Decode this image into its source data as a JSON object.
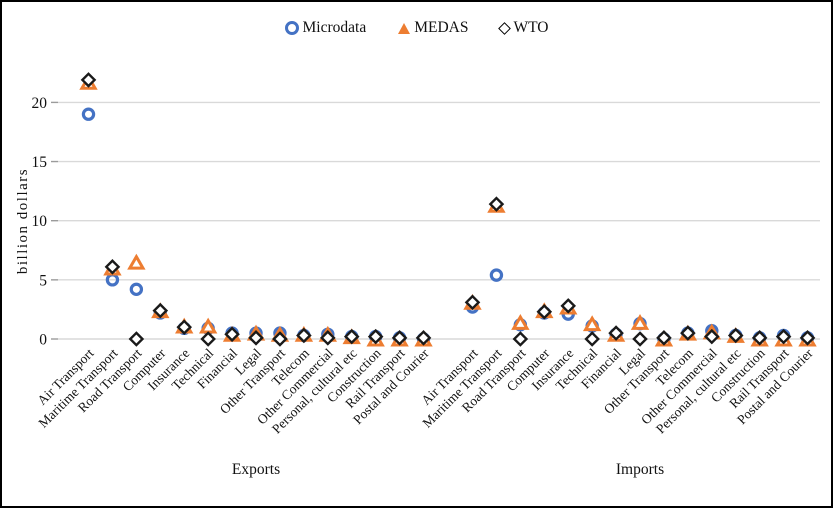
{
  "figure": {
    "legend": {
      "items": [
        {
          "label": "Microdata",
          "marker": "open-circle-icon",
          "color": "#4472C4"
        },
        {
          "label": "MEDAS",
          "marker": "triangle-icon",
          "color": "#ED7D31"
        },
        {
          "label": "WTO",
          "marker": "open-diamond-icon",
          "color": "#000000"
        }
      ]
    }
  },
  "chart_data": {
    "type": "scatter",
    "title": "",
    "xlabel": "",
    "ylabel": "billion dollars",
    "ylim": [
      0,
      22
    ],
    "yticks": [
      0,
      5,
      10,
      15,
      20
    ],
    "grid": true,
    "legend_position": "top-center",
    "colors": {
      "Microdata": "#4472C4",
      "MEDAS": "#ED7D31",
      "WTO": "#000000"
    },
    "markers": {
      "Microdata": "open-circle",
      "MEDAS": "triangle",
      "WTO": "open-diamond"
    },
    "categories": [
      "Air Transport",
      "Maritime Transport",
      "Road Transport",
      "Computer",
      "Insurance",
      "Technical",
      "Financial",
      "Legal",
      "Other Transport",
      "Telecom",
      "Other Commercial",
      "Personal, cultural etc",
      "Construction",
      "Rail Transport",
      "Postal and Courier"
    ],
    "groups": [
      {
        "name": "Exports",
        "series": [
          {
            "name": "Microdata",
            "values": [
              19.0,
              5.0,
              4.2,
              2.2,
              0.9,
              0.9,
              0.5,
              0.5,
              0.5,
              0.3,
              0.4,
              0.2,
              0.2,
              0.1,
              0.0
            ]
          },
          {
            "name": "MEDAS",
            "values": [
              21.6,
              5.9,
              6.4,
              2.3,
              1.0,
              1.0,
              0.3,
              0.4,
              0.3,
              0.3,
              0.3,
              0.1,
              -0.1,
              -0.1,
              -0.1
            ]
          },
          {
            "name": "WTO",
            "values": [
              21.9,
              6.1,
              0.0,
              2.4,
              1.0,
              0.0,
              0.4,
              0.1,
              0.0,
              0.3,
              0.1,
              0.2,
              0.2,
              0.1,
              0.1
            ]
          }
        ]
      },
      {
        "name": "Imports",
        "series": [
          {
            "name": "Microdata",
            "values": [
              2.7,
              5.4,
              1.2,
              2.2,
              2.1,
              1.1,
              0.4,
              1.3,
              0.0,
              0.5,
              0.7,
              0.3,
              0.1,
              0.3,
              0.1
            ]
          },
          {
            "name": "MEDAS",
            "values": [
              3.0,
              11.2,
              1.3,
              2.3,
              2.6,
              1.2,
              0.3,
              1.3,
              -0.1,
              0.4,
              0.5,
              0.2,
              -0.1,
              -0.1,
              -0.1
            ]
          },
          {
            "name": "WTO",
            "values": [
              3.1,
              11.4,
              0.0,
              2.3,
              2.8,
              0.0,
              0.5,
              0.0,
              0.1,
              0.5,
              0.2,
              0.3,
              0.1,
              0.2,
              0.1
            ]
          }
        ]
      }
    ]
  }
}
